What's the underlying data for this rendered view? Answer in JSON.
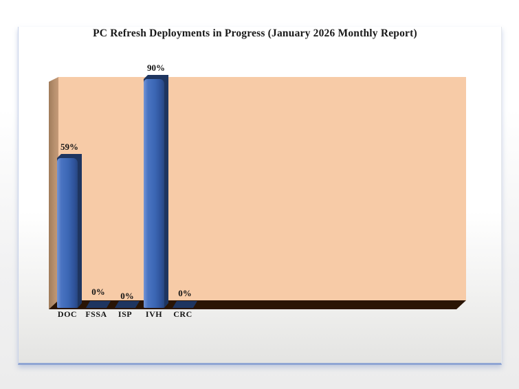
{
  "page": {
    "kind": "monthly report chart page"
  },
  "chart_data": {
    "type": "bar",
    "style": "3d-column",
    "title": "PC Refresh Deployments in Progress (January 2026 Monthly Report)",
    "categories": [
      "DOC",
      "FSSA",
      "ISP",
      "IVH",
      "CRC"
    ],
    "values": [
      59,
      0,
      0,
      90,
      0
    ],
    "value_labels": [
      "59%",
      "0%",
      "0%",
      "90%",
      "0%"
    ],
    "label_dy": [
      0,
      3,
      9,
      0,
      5
    ],
    "xlabel": "",
    "ylabel": "",
    "ylim": [
      0,
      100
    ],
    "axis_ticks_visible": false,
    "grid": false,
    "legend": "none",
    "colors": {
      "plot_background": "#f7cba7",
      "side_wall": "#b8916f",
      "floor": "#2a1505",
      "bar_face": "#3b66b4",
      "bar_highlight": "#7495d6",
      "bar_shadow_face": "#1e3560",
      "title_text": "#191919",
      "label_text": "#141414",
      "page_border_bottom": "#90a5d3",
      "page_border_left": "#c9d3ea"
    }
  }
}
